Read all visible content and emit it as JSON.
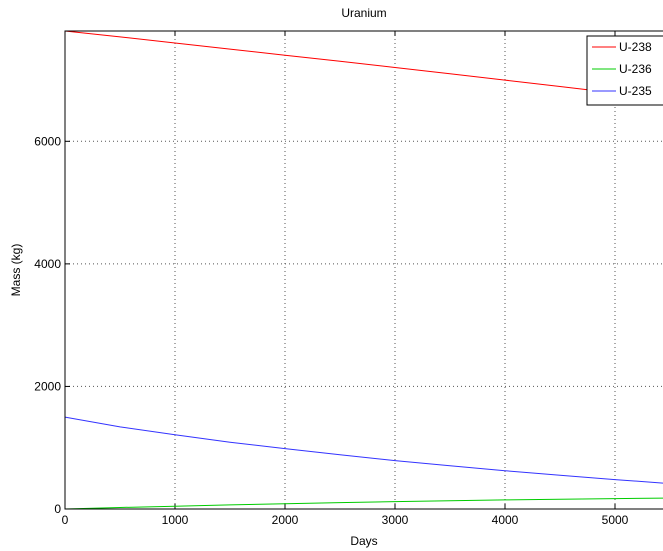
{
  "chart_data": {
    "type": "line",
    "title": "Uranium",
    "xlabel": "Days",
    "ylabel": "Mass (kg)",
    "xlim": [
      0,
      5500
    ],
    "ylim": [
      0,
      7800
    ],
    "x_ticks": [
      0,
      1000,
      2000,
      3000,
      4000,
      5000
    ],
    "y_ticks": [
      0,
      2000,
      4000,
      6000
    ],
    "grid": true,
    "legend_position": "top-right",
    "series": [
      {
        "name": "U-238",
        "color": "#ff0000",
        "x": [
          0,
          500,
          1000,
          1500,
          2000,
          2500,
          3000,
          3500,
          4000,
          4500,
          5000,
          5500
        ],
        "y": [
          7800,
          7703,
          7604,
          7505,
          7405,
          7305,
          7204,
          7102,
          6999,
          6894,
          6788,
          6680
        ]
      },
      {
        "name": "U-236",
        "color": "#00cc00",
        "x": [
          0,
          500,
          1000,
          1500,
          2000,
          2500,
          3000,
          3500,
          4000,
          4500,
          5000,
          5500
        ],
        "y": [
          0,
          24,
          46,
          67,
          86,
          104,
          120,
          135,
          148,
          159,
          170,
          178
        ]
      },
      {
        "name": "U-235",
        "color": "#3333ff",
        "x": [
          0,
          500,
          1000,
          1500,
          2000,
          2500,
          3000,
          3500,
          4000,
          4500,
          5000,
          5500
        ],
        "y": [
          1500,
          1340,
          1210,
          1090,
          985,
          885,
          790,
          705,
          625,
          550,
          480,
          415
        ]
      }
    ]
  }
}
